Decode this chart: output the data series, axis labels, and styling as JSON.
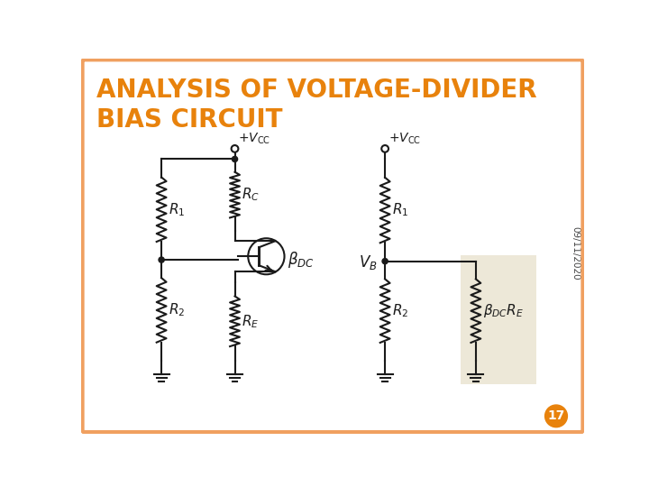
{
  "title_line1": "ANALYSIS OF VOLTAGE-DIVIDER",
  "title_line2": "BIAS CIRCUIT",
  "title_color": "#E8820C",
  "title_fontsize": 20,
  "bg_color": "#FFFFFF",
  "border_color": "#F0A060",
  "date_text": "09/11/2020",
  "page_number": "17",
  "page_circle_color": "#E8820C",
  "highlight_box_color": "#EDE8D8",
  "lw": 1.5,
  "color": "#1a1a1a"
}
